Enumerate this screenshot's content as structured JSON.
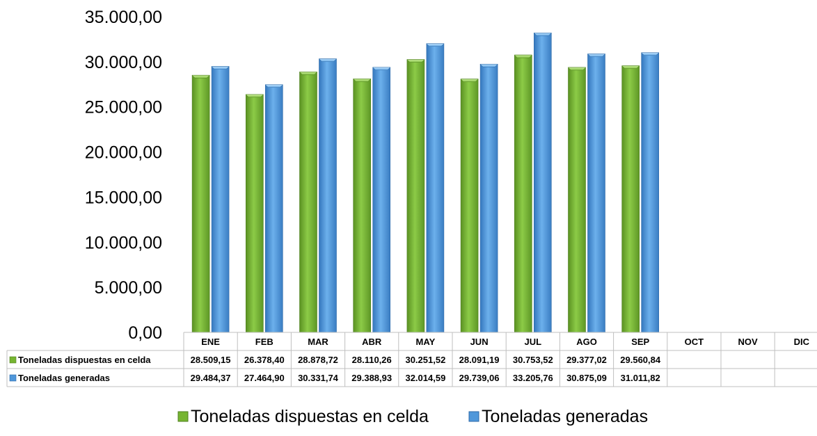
{
  "chart_data": {
    "type": "bar",
    "categories": [
      "ENE",
      "FEB",
      "MAR",
      "ABR",
      "MAY",
      "JUN",
      "JUL",
      "AGO",
      "SEP",
      "OCT",
      "NOV",
      "DIC"
    ],
    "series": [
      {
        "name": "Toneladas dispuestas en celda",
        "color": "#76B531",
        "values": [
          28509.15,
          26378.4,
          28878.72,
          28110.26,
          30251.52,
          28091.19,
          30753.52,
          29377.02,
          29560.84,
          null,
          null,
          null
        ],
        "labels": [
          "28.509,15",
          "26.378,40",
          "28.878,72",
          "28.110,26",
          "30.251,52",
          "28.091,19",
          "30.753,52",
          "29.377,02",
          "29.560,84",
          "",
          "",
          ""
        ]
      },
      {
        "name": "Toneladas generadas",
        "color": "#4F97DA",
        "values": [
          29484.37,
          27464.9,
          30331.74,
          29388.93,
          32014.59,
          29739.06,
          33205.76,
          30875.09,
          31011.82,
          null,
          null,
          null
        ],
        "labels": [
          "29.484,37",
          "27.464,90",
          "30.331,74",
          "29.388,93",
          "32.014,59",
          "29.739,06",
          "33.205,76",
          "30.875,09",
          "31.011,82",
          "",
          "",
          ""
        ]
      }
    ],
    "yticks": [
      "0,00",
      "5.000,00",
      "10.000,00",
      "15.000,00",
      "20.000,00",
      "25.000,00",
      "30.000,00",
      "35.000,00"
    ],
    "ylim": [
      0,
      35000
    ],
    "grid": false,
    "data_table": true,
    "legend_position": "bottom"
  }
}
